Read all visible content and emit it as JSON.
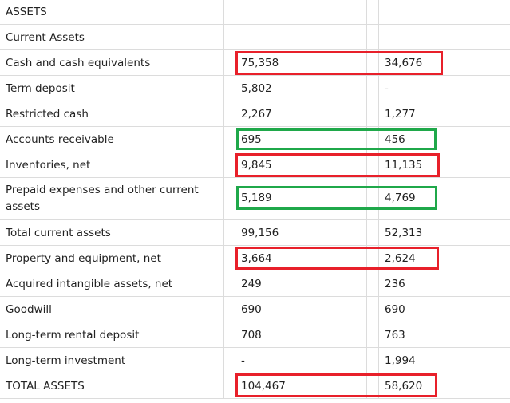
{
  "rows": [
    {
      "label": "ASSETS",
      "v1": "",
      "v2": ""
    },
    {
      "label": "Current Assets",
      "v1": "",
      "v2": ""
    },
    {
      "label": "Cash and cash equivalents",
      "v1": "75,358",
      "v2": "34,676"
    },
    {
      "label": "Term deposit",
      "v1": "5,802",
      "v2": "-"
    },
    {
      "label": "Restricted cash",
      "v1": "2,267",
      "v2": "1,277"
    },
    {
      "label": "Accounts receivable",
      "v1": "695",
      "v2": "456"
    },
    {
      "label": "Inventories, net",
      "v1": "9,845",
      "v2": "11,135"
    },
    {
      "label": "Prepaid expenses and other current assets",
      "v1": "5,189",
      "v2": "4,769"
    },
    {
      "label": "Total current assets",
      "v1": "99,156",
      "v2": "52,313"
    },
    {
      "label": "Property and equipment, net",
      "v1": "3,664",
      "v2": "2,624"
    },
    {
      "label": "Acquired intangible assets, net",
      "v1": "249",
      "v2": "236"
    },
    {
      "label": "Goodwill",
      "v1": "690",
      "v2": "690"
    },
    {
      "label": "Long-term rental deposit",
      "v1": "708",
      "v2": "763"
    },
    {
      "label": "Long-term investment",
      "v1": "-",
      "v2": "1,994"
    },
    {
      "label": "TOTAL ASSETS",
      "v1": "104,467",
      "v2": "58,620"
    }
  ],
  "colors": {
    "red_highlight": "#e8202a",
    "green_highlight": "#1fa84a",
    "grid": "#dcdcdc"
  }
}
